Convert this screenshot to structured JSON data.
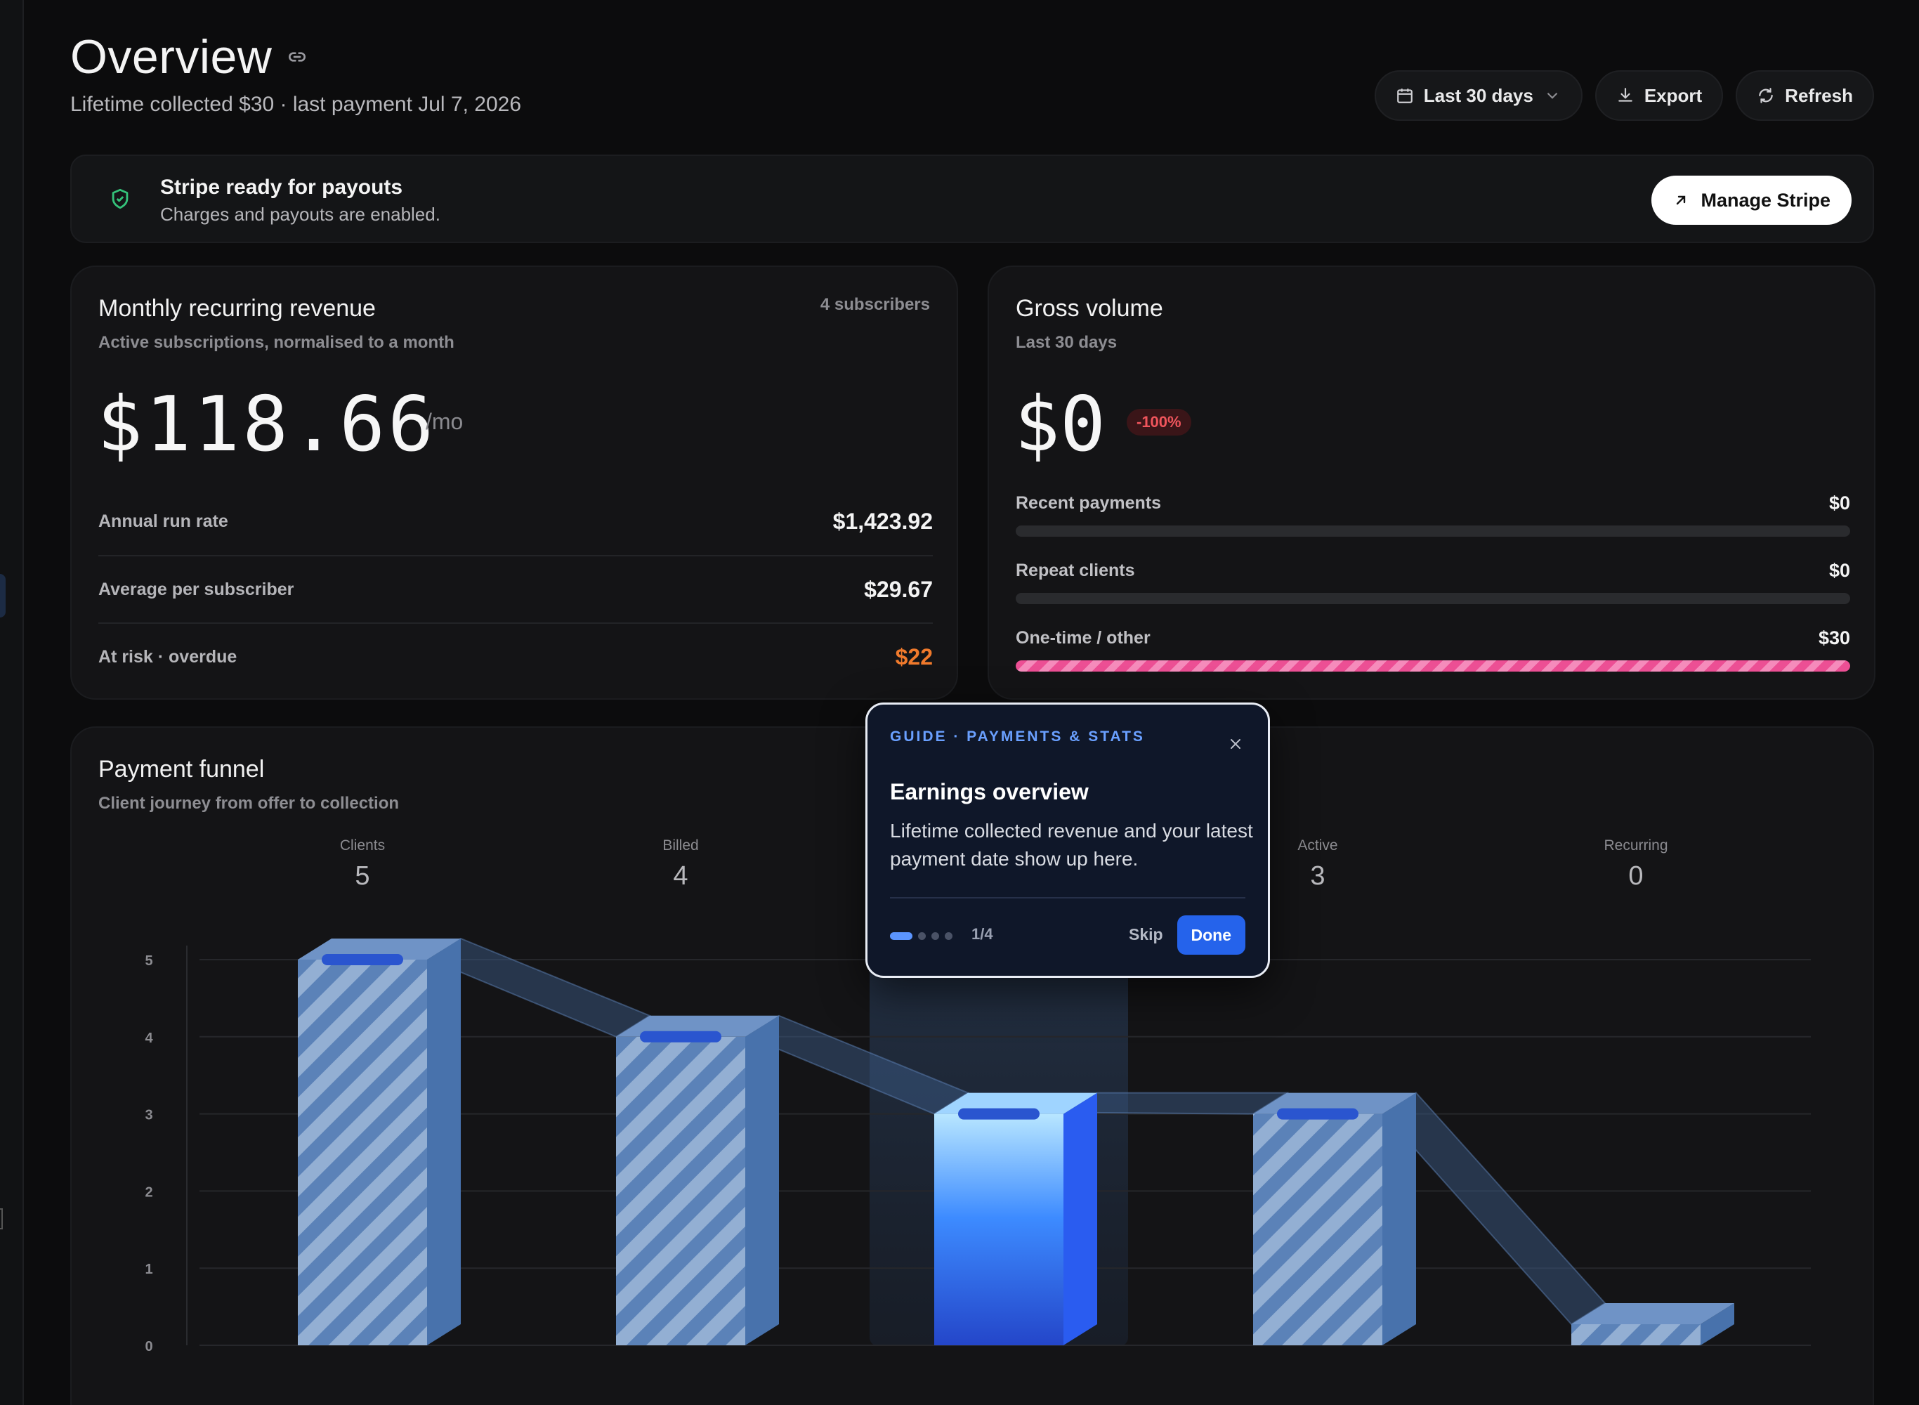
{
  "header": {
    "title": "Overview",
    "subtitle": "Lifetime collected $30 · last payment Jul 7, 2026",
    "date_range": "Last 30 days",
    "export_label": "Export",
    "refresh_label": "Refresh"
  },
  "stripe": {
    "title": "Stripe ready for payouts",
    "description": "Charges and payouts are enabled.",
    "manage_label": "Manage Stripe"
  },
  "mrr": {
    "title": "Monthly recurring revenue",
    "subtitle": "Active subscriptions, normalised to a month",
    "subscribers": "4 subscribers",
    "value": "$118.66",
    "unit": "/mo",
    "rows": [
      {
        "label": "Annual run rate",
        "value": "$1,423.92"
      },
      {
        "label": "Average per subscriber",
        "value": "$29.67"
      },
      {
        "label": "At risk · overdue",
        "value": "$22"
      }
    ]
  },
  "gross": {
    "title": "Gross volume",
    "subtitle": "Last 30 days",
    "value": "$0",
    "change": "-100%",
    "bars": [
      {
        "label": "Recent payments",
        "value": "$0",
        "fraction": 0
      },
      {
        "label": "Repeat clients",
        "value": "$0",
        "fraction": 0
      },
      {
        "label": "One-time / other",
        "value": "$30",
        "fraction": 1
      }
    ]
  },
  "funnel": {
    "title": "Payment funnel",
    "subtitle": "Client journey from offer to collection",
    "stages": [
      {
        "label": "Clients",
        "count": "5"
      },
      {
        "label": "Billed",
        "count": "4"
      },
      {
        "label": "",
        "count": ""
      },
      {
        "label": "Active",
        "count": "3"
      },
      {
        "label": "Recurring",
        "count": "0"
      }
    ],
    "highlight_index": 2
  },
  "chart_data": {
    "type": "bar",
    "categories": [
      "Clients",
      "Billed",
      "",
      "Active",
      "Recurring"
    ],
    "values": [
      5,
      4,
      3,
      3,
      0
    ],
    "ylim": [
      0,
      5
    ],
    "yticks": [
      "0",
      "1",
      "2",
      "3",
      "4",
      "5"
    ],
    "grid": true,
    "colors": {
      "bar": "#5b82b8",
      "highlight": "#2f6bff"
    }
  },
  "guide": {
    "eyebrow": "GUIDE · PAYMENTS & STATS",
    "title": "Earnings overview",
    "body": "Lifetime collected revenue and your latest payment date show up here.",
    "step": "1/4",
    "step_index": 0,
    "step_total": 4,
    "skip_label": "Skip",
    "done_label": "Done"
  },
  "icons": {
    "title_link": "link-icon",
    "date": "calendar-icon",
    "export": "download-icon",
    "refresh": "refresh-icon",
    "stripe": "shield-check-icon",
    "manage": "arrow-up-right-icon",
    "close": "close-icon"
  }
}
